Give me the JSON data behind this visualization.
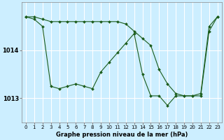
{
  "title": "Graphe pression niveau de la mer (hPa)",
  "bg_color": "#cceeff",
  "grid_color": "#ffffff",
  "line_color": "#1a5c1a",
  "x_min": 0,
  "x_max": 23,
  "y_min": 1012.5,
  "y_max": 1015.0,
  "yticks": [
    1013,
    1014
  ],
  "xticks": [
    0,
    1,
    2,
    3,
    4,
    5,
    6,
    7,
    8,
    9,
    10,
    11,
    12,
    13,
    14,
    15,
    16,
    17,
    18,
    19,
    20,
    21,
    22,
    23
  ],
  "series1": [
    1014.7,
    1014.7,
    1014.65,
    1014.6,
    1014.6,
    1014.6,
    1014.6,
    1014.6,
    1014.6,
    1014.6,
    1014.6,
    1014.6,
    1014.55,
    1014.4,
    1014.25,
    1014.1,
    1013.6,
    1013.3,
    1013.1,
    1013.05,
    1013.05,
    1013.1,
    1014.5,
    1014.7
  ],
  "series2": [
    1014.7,
    1014.65,
    1014.5,
    1013.25,
    1013.2,
    1013.25,
    1013.3,
    1013.25,
    1013.2,
    1013.55,
    1013.75,
    1013.95,
    1014.15,
    1014.35,
    1013.5,
    1013.05,
    1013.05,
    1012.85,
    1013.05,
    1013.05,
    1013.05,
    1013.05,
    1014.4,
    1014.7
  ]
}
